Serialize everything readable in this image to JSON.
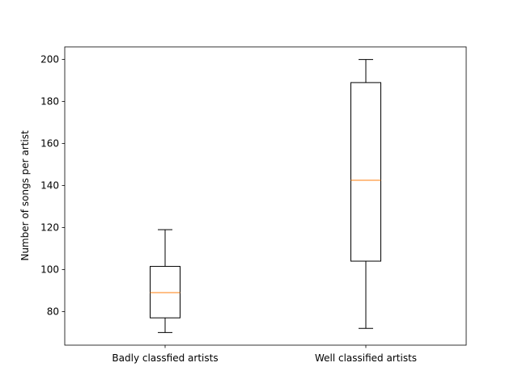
{
  "chart_data": {
    "type": "box",
    "title": "",
    "xlabel": "",
    "ylabel": "Number of songs per artist",
    "ylim": [
      64,
      206
    ],
    "yticks": [
      80,
      100,
      120,
      140,
      160,
      180,
      200
    ],
    "grid": false,
    "categories": [
      "Badly classfied artists",
      "Well classified artists"
    ],
    "boxes": [
      {
        "category": "Badly classfied artists",
        "whisker_low": 70,
        "q1": 77,
        "median": 89,
        "q3": 101.5,
        "whisker_high": 119
      },
      {
        "category": "Well classified artists",
        "whisker_low": 72,
        "q1": 104,
        "median": 142.5,
        "q3": 189,
        "whisker_high": 200
      }
    ],
    "colors": {
      "box": "#000000",
      "median": "#ff7f0e"
    }
  }
}
